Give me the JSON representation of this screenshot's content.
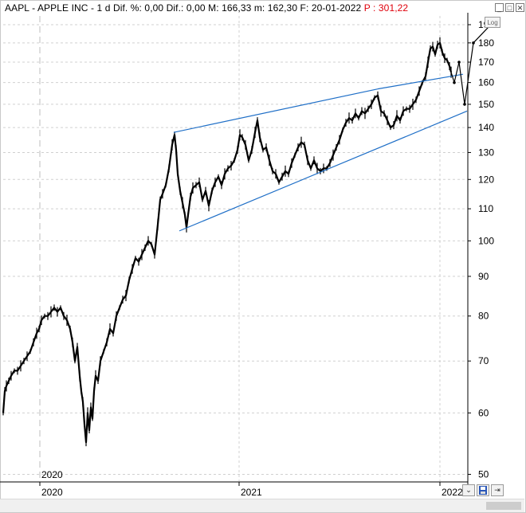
{
  "header": {
    "symbol": "AAPL",
    "name": "APPLE INC",
    "interval": "1 d",
    "chg_pct_label": "Dif. %:",
    "chg_pct_value": "0,00",
    "chg_label": "Dif.:",
    "chg_value": "0,00",
    "high_label": "M:",
    "high_value": "166,33",
    "low_label": "m:",
    "low_value": "162,30",
    "date_label": "F:",
    "date_value": "20-01-2022",
    "price_label": "P :",
    "price_value": "301,22"
  },
  "colors": {
    "price": "#000000",
    "trendline": "#1f6fc7",
    "projection": "#000000",
    "header_price": "#e0000b",
    "grid": "#d0d0d0"
  },
  "controls": {
    "log_label": "Log",
    "minimize_icon": "minimize-icon",
    "maximize_icon": "maximize-icon",
    "close_icon": "close-icon",
    "save_icon": "save-icon",
    "print_icon": "print-icon",
    "arrows_icon": "arrows-icon"
  },
  "chart_data": {
    "type": "line",
    "title": "AAPL - APPLE INC - 1 d",
    "yscale": "log",
    "ylim": [
      49,
      195
    ],
    "grid": true,
    "y_ticks": [
      "190",
      "180",
      "170",
      "160",
      "150",
      "140",
      "130",
      "120",
      "110",
      "100",
      "90",
      "80",
      "70",
      "60",
      "50"
    ],
    "x_ticks": [
      "2020",
      "2021",
      "2022"
    ],
    "x_marker_label": "2020",
    "series": [
      {
        "values": [
          [
            0,
            60
          ],
          [
            2,
            64
          ],
          [
            4,
            65
          ],
          [
            7,
            66
          ],
          [
            10,
            67
          ],
          [
            14,
            68
          ],
          [
            18,
            68
          ],
          [
            22,
            69
          ],
          [
            26,
            70
          ],
          [
            30,
            71
          ],
          [
            34,
            72
          ],
          [
            38,
            74
          ],
          [
            42,
            76
          ],
          [
            45,
            77
          ],
          [
            48,
            79
          ],
          [
            52,
            80
          ],
          [
            56,
            80
          ],
          [
            60,
            81
          ],
          [
            64,
            82
          ],
          [
            68,
            81
          ],
          [
            72,
            82
          ],
          [
            76,
            80
          ],
          [
            80,
            79
          ],
          [
            84,
            77
          ],
          [
            87,
            74
          ],
          [
            90,
            70
          ],
          [
            93,
            73
          ],
          [
            96,
            67
          ],
          [
            98,
            64
          ],
          [
            100,
            62
          ],
          [
            102,
            58
          ],
          [
            104,
            55
          ],
          [
            106,
            60
          ],
          [
            108,
            57
          ],
          [
            110,
            61
          ],
          [
            112,
            59
          ],
          [
            114,
            64
          ],
          [
            116,
            67
          ],
          [
            119,
            66
          ],
          [
            122,
            70
          ],
          [
            126,
            72
          ],
          [
            130,
            74
          ],
          [
            134,
            77
          ],
          [
            138,
            76
          ],
          [
            142,
            80
          ],
          [
            146,
            82
          ],
          [
            150,
            84
          ],
          [
            154,
            85
          ],
          [
            158,
            89
          ],
          [
            162,
            92
          ],
          [
            166,
            95
          ],
          [
            170,
            94
          ],
          [
            174,
            96
          ],
          [
            178,
            98
          ],
          [
            182,
            100
          ],
          [
            186,
            99
          ],
          [
            190,
            96
          ],
          [
            194,
            105
          ],
          [
            197,
            113
          ],
          [
            200,
            115
          ],
          [
            204,
            118
          ],
          [
            208,
            124
          ],
          [
            212,
            133
          ],
          [
            215,
            137
          ],
          [
            217,
            131
          ],
          [
            219,
            122
          ],
          [
            222,
            116
          ],
          [
            225,
            112
          ],
          [
            228,
            108
          ],
          [
            230,
            104
          ],
          [
            232,
            108
          ],
          [
            235,
            114
          ],
          [
            238,
            117
          ],
          [
            242,
            118
          ],
          [
            246,
            119
          ],
          [
            250,
            113
          ],
          [
            254,
            116
          ],
          [
            258,
            111
          ],
          [
            262,
            116
          ],
          [
            266,
            119
          ],
          [
            270,
            121
          ],
          [
            274,
            118
          ],
          [
            278,
            122
          ],
          [
            282,
            124
          ],
          [
            286,
            125
          ],
          [
            290,
            127
          ],
          [
            294,
            131
          ],
          [
            297,
            137
          ],
          [
            300,
            136
          ],
          [
            304,
            133
          ],
          [
            308,
            127
          ],
          [
            312,
            131
          ],
          [
            316,
            138
          ],
          [
            319,
            143
          ],
          [
            322,
            136
          ],
          [
            326,
            131
          ],
          [
            330,
            132
          ],
          [
            334,
            127
          ],
          [
            338,
            123
          ],
          [
            342,
            122
          ],
          [
            346,
            119
          ],
          [
            350,
            121
          ],
          [
            354,
            123
          ],
          [
            358,
            122
          ],
          [
            362,
            126
          ],
          [
            366,
            129
          ],
          [
            370,
            132
          ],
          [
            374,
            134
          ],
          [
            378,
            133
          ],
          [
            382,
            127
          ],
          [
            386,
            124
          ],
          [
            390,
            127
          ],
          [
            394,
            124
          ],
          [
            398,
            123
          ],
          [
            402,
            124
          ],
          [
            406,
            124
          ],
          [
            410,
            126
          ],
          [
            414,
            129
          ],
          [
            418,
            132
          ],
          [
            422,
            135
          ],
          [
            426,
            139
          ],
          [
            430,
            142
          ],
          [
            434,
            144
          ],
          [
            438,
            143
          ],
          [
            442,
            146
          ],
          [
            446,
            144
          ],
          [
            450,
            147
          ],
          [
            454,
            146
          ],
          [
            458,
            148
          ],
          [
            462,
            150
          ],
          [
            466,
            153
          ],
          [
            470,
            154
          ],
          [
            474,
            147
          ],
          [
            478,
            146
          ],
          [
            482,
            143
          ],
          [
            486,
            140
          ],
          [
            490,
            141
          ],
          [
            494,
            145
          ],
          [
            498,
            143
          ],
          [
            502,
            147
          ],
          [
            506,
            148
          ],
          [
            510,
            148
          ],
          [
            514,
            150
          ],
          [
            518,
            152
          ],
          [
            522,
            156
          ],
          [
            526,
            160
          ],
          [
            530,
            163
          ],
          [
            533,
            170
          ],
          [
            536,
            177
          ],
          [
            539,
            178
          ],
          [
            542,
            174
          ],
          [
            545,
            179
          ],
          [
            548,
            180
          ],
          [
            551,
            175
          ],
          [
            554,
            172
          ],
          [
            557,
            171
          ],
          [
            560,
            168
          ],
          [
            562,
            165
          ]
        ]
      }
    ],
    "trendlines": [
      {
        "from": [
          214,
          138
        ],
        "to": [
          470,
          157
        ]
      },
      {
        "from": [
          470,
          157
        ],
        "to": [
          577,
          164
        ]
      },
      {
        "from": [
          221,
          103
        ],
        "to": [
          582,
          147
        ]
      }
    ],
    "projection": [
      [
        562,
        165
      ],
      [
        566,
        160
      ],
      [
        572,
        170
      ],
      [
        579,
        150
      ],
      [
        590,
        180
      ],
      [
        616,
        192
      ]
    ]
  }
}
